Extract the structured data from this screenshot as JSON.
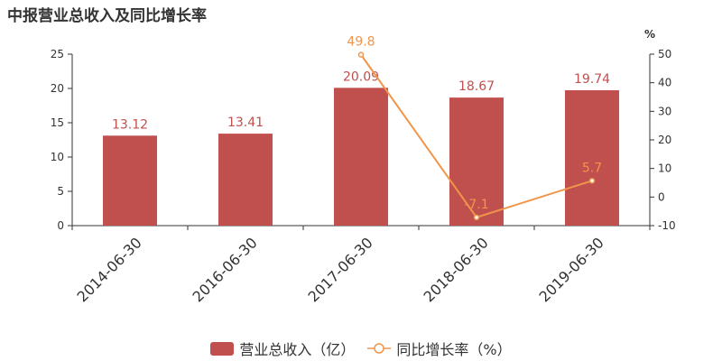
{
  "title": "中报营业总收入及同比增长率",
  "colors": {
    "bar": "#c0504d",
    "line": "#f0954a",
    "axis": "#333333"
  },
  "chart_data": {
    "type": "bar",
    "categories": [
      "2014-06-30",
      "2016-06-30",
      "2017-06-30",
      "2018-06-30",
      "2019-06-30"
    ],
    "series": [
      {
        "name": "营业总收入（亿）",
        "type": "bar",
        "axis": "left",
        "values": [
          13.12,
          13.41,
          20.09,
          18.67,
          19.74
        ]
      },
      {
        "name": "同比增长率（%）",
        "type": "line",
        "axis": "right",
        "values": [
          null,
          null,
          49.8,
          -7.1,
          5.7
        ]
      }
    ],
    "y_left": {
      "lim": [
        0,
        25
      ],
      "ticks": [
        0,
        5,
        10,
        15,
        20,
        25
      ]
    },
    "y_right": {
      "label": "%",
      "lim": [
        -10,
        50
      ],
      "ticks": [
        -10,
        0,
        10,
        20,
        30,
        40,
        50
      ]
    },
    "legend_position": "bottom",
    "grid": false
  }
}
